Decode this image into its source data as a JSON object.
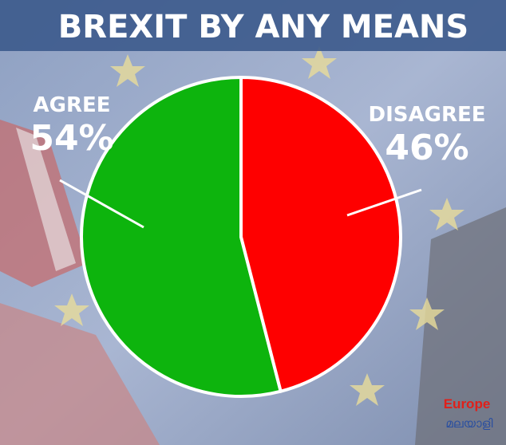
{
  "chart_data": {
    "type": "pie",
    "title": "BREXIT BY ANY MEANS",
    "categories": [
      "AGREE",
      "DISAGREE"
    ],
    "values": [
      54,
      46
    ],
    "value_labels": [
      "54%",
      "46%"
    ],
    "colors": [
      "#0db40d",
      "#fe0000"
    ],
    "watermark": [
      "Europe",
      "മലയാളി"
    ]
  }
}
